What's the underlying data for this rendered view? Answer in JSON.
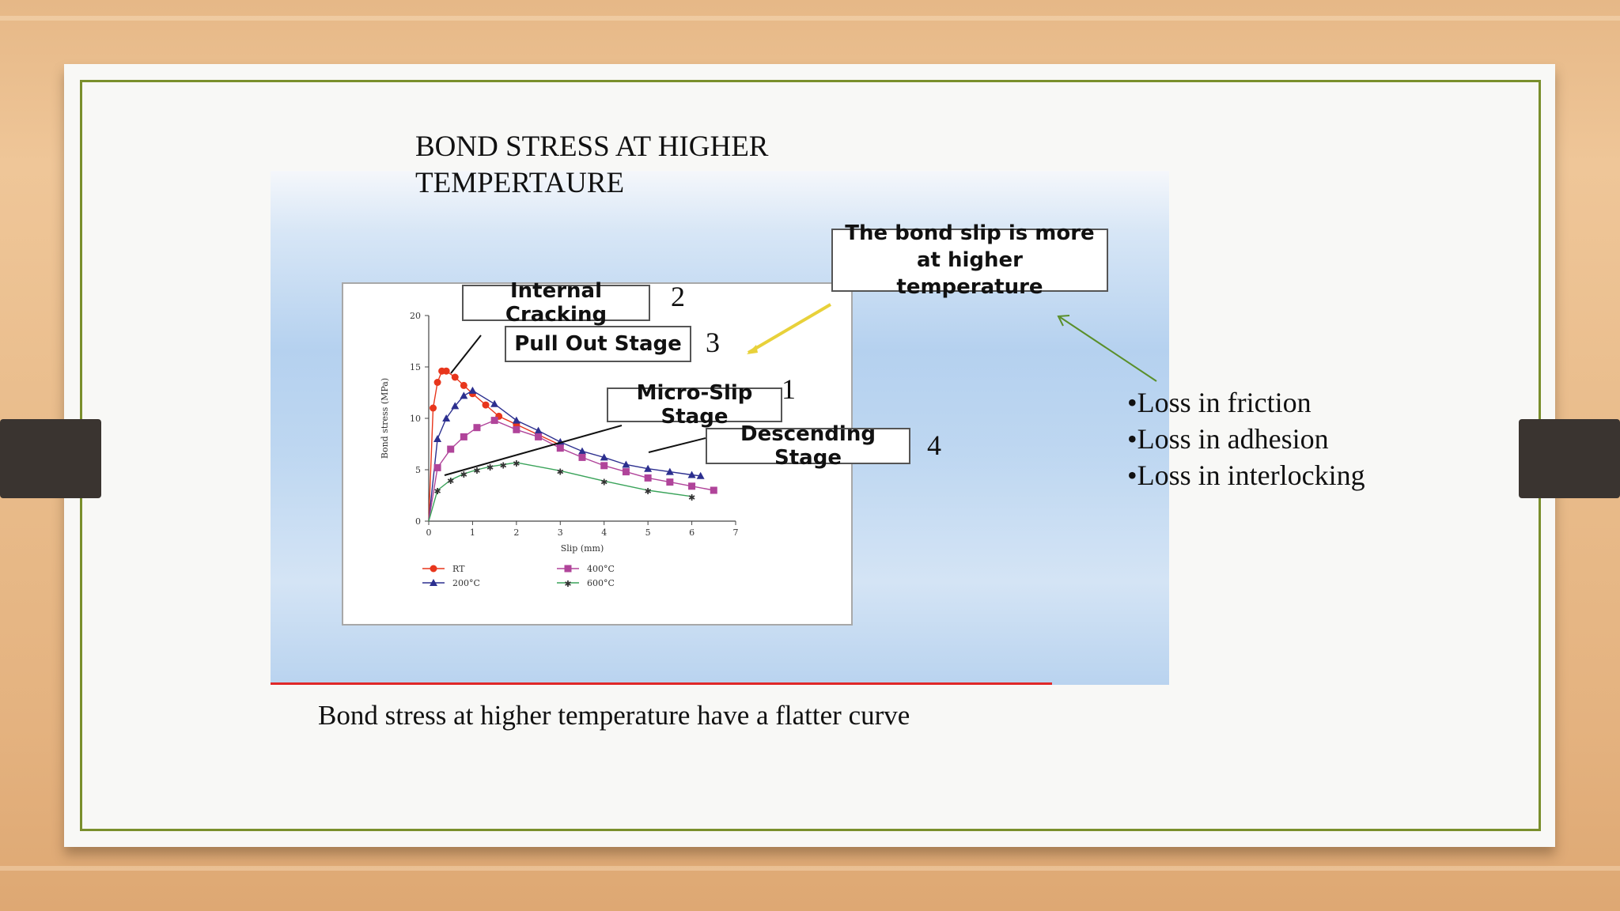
{
  "slide": {
    "title": "BOND STRESS AT HIGHER TEMPERTAURE",
    "caption": "Bond stress at higher temperature have a flatter curve",
    "bullets": [
      "•Loss in friction",
      "•Loss in adhesion",
      "•Loss in interlocking"
    ],
    "callouts": {
      "internal_cracking": "Internal Cracking",
      "pull_out": "Pull Out Stage",
      "micro_slip": "Micro-Slip Stage",
      "descending": "Descending Stage",
      "bond_slip_note": "The bond slip is more at higher temperature"
    },
    "stage_numbers": [
      "1",
      "2",
      "3",
      "4"
    ],
    "colors": {
      "frame": "#7a8f2c",
      "arrow_green": "#5a8f2a",
      "arrow_yellow": "#e8d13a",
      "underline_red": "#e02828"
    }
  },
  "chart_data": {
    "type": "line",
    "xlabel": "Slip (mm)",
    "ylabel": "Bond stress (MPa)",
    "xlim": [
      0,
      7
    ],
    "ylim": [
      0,
      20
    ],
    "xticks": [
      "0",
      "1",
      "2",
      "3",
      "4",
      "5",
      "6",
      "7"
    ],
    "yticks": [
      "0",
      "5",
      "10",
      "15",
      "20"
    ],
    "legend_position": "bottom",
    "series": [
      {
        "name": "RT",
        "color": "#e8361c",
        "marker": "circle",
        "x": [
          0,
          0.1,
          0.2,
          0.3,
          0.4,
          0.6,
          0.8,
          1.0,
          1.3,
          1.6,
          2.0,
          2.5,
          3.0
        ],
        "y": [
          0,
          11,
          13.5,
          14.6,
          14.6,
          14.0,
          13.2,
          12.4,
          11.3,
          10.2,
          9.4,
          8.4,
          7.4
        ]
      },
      {
        "name": "200°C",
        "color": "#2c2f8f",
        "marker": "triangle",
        "x": [
          0,
          0.2,
          0.4,
          0.6,
          0.8,
          1.0,
          1.5,
          2.0,
          2.5,
          3.0,
          3.5,
          4.0,
          4.5,
          5.0,
          5.5,
          6.0,
          6.2
        ],
        "y": [
          0,
          8.0,
          10.0,
          11.2,
          12.2,
          12.7,
          11.4,
          9.8,
          8.8,
          7.7,
          6.8,
          6.2,
          5.5,
          5.1,
          4.8,
          4.5,
          4.4
        ]
      },
      {
        "name": "400°C",
        "color": "#b0449a",
        "marker": "square",
        "x": [
          0,
          0.2,
          0.5,
          0.8,
          1.1,
          1.5,
          2.0,
          2.5,
          3.0,
          3.5,
          4.0,
          4.5,
          5.0,
          5.5,
          6.0,
          6.5
        ],
        "y": [
          0,
          5.2,
          7.0,
          8.2,
          9.1,
          9.8,
          8.9,
          8.2,
          7.1,
          6.2,
          5.4,
          4.8,
          4.2,
          3.8,
          3.4,
          3.0
        ]
      },
      {
        "name": "600°C",
        "color": "#3aa35a",
        "marker": "star",
        "x": [
          0,
          0.2,
          0.5,
          0.8,
          1.1,
          1.4,
          1.7,
          2.0,
          3.0,
          4.0,
          5.0,
          6.0
        ],
        "y": [
          0,
          3.0,
          4.0,
          4.6,
          5.0,
          5.3,
          5.5,
          5.7,
          4.9,
          3.9,
          3.0,
          2.4
        ]
      }
    ]
  }
}
